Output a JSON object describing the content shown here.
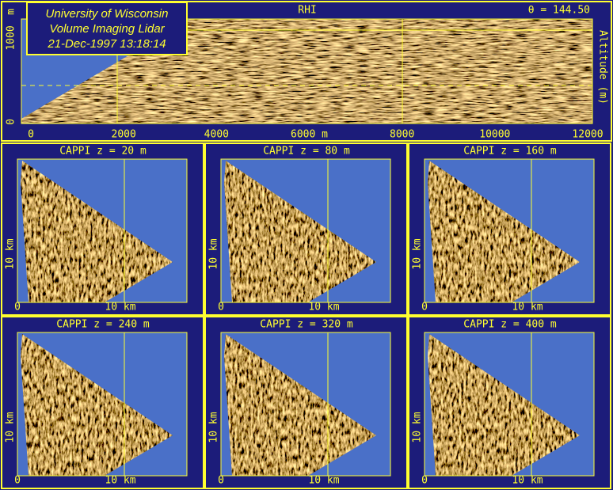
{
  "header": {
    "lines": [
      "University of Wisconsin",
      "Volume Imaging Lidar",
      "21-Dec-1997 13:18:14"
    ]
  },
  "rhi": {
    "title": "RHI",
    "angle": "θ = 144.50",
    "x_labels": [
      "0",
      "2000",
      "4000",
      "6000 m",
      "8000",
      "10000",
      "12000"
    ],
    "y_labels": [
      "0",
      "1000",
      "m"
    ],
    "y2_label": "Altitude (m)"
  },
  "panels": [
    {
      "title": "CAPPI  z = 20 m",
      "x_labels": [
        "0",
        "10 km"
      ],
      "y_label": "10 km"
    },
    {
      "title": "CAPPI  z = 80 m",
      "x_labels": [
        "0",
        "10 km"
      ],
      "y_label": "10 km"
    },
    {
      "title": "CAPPI  z = 160 m",
      "x_labels": [
        "0",
        "10 km"
      ],
      "y_label": "10 km"
    },
    {
      "title": "CAPPI  z = 240 m",
      "x_labels": [
        "0",
        "10 km"
      ],
      "y_label": "10 km"
    },
    {
      "title": "CAPPI  z = 320 m",
      "x_labels": [
        "0",
        "10 km"
      ],
      "y_label": "10 km"
    },
    {
      "title": "CAPPI  z = 400 m",
      "x_labels": [
        "0",
        "10 km"
      ],
      "y_label": "10 km"
    }
  ]
}
